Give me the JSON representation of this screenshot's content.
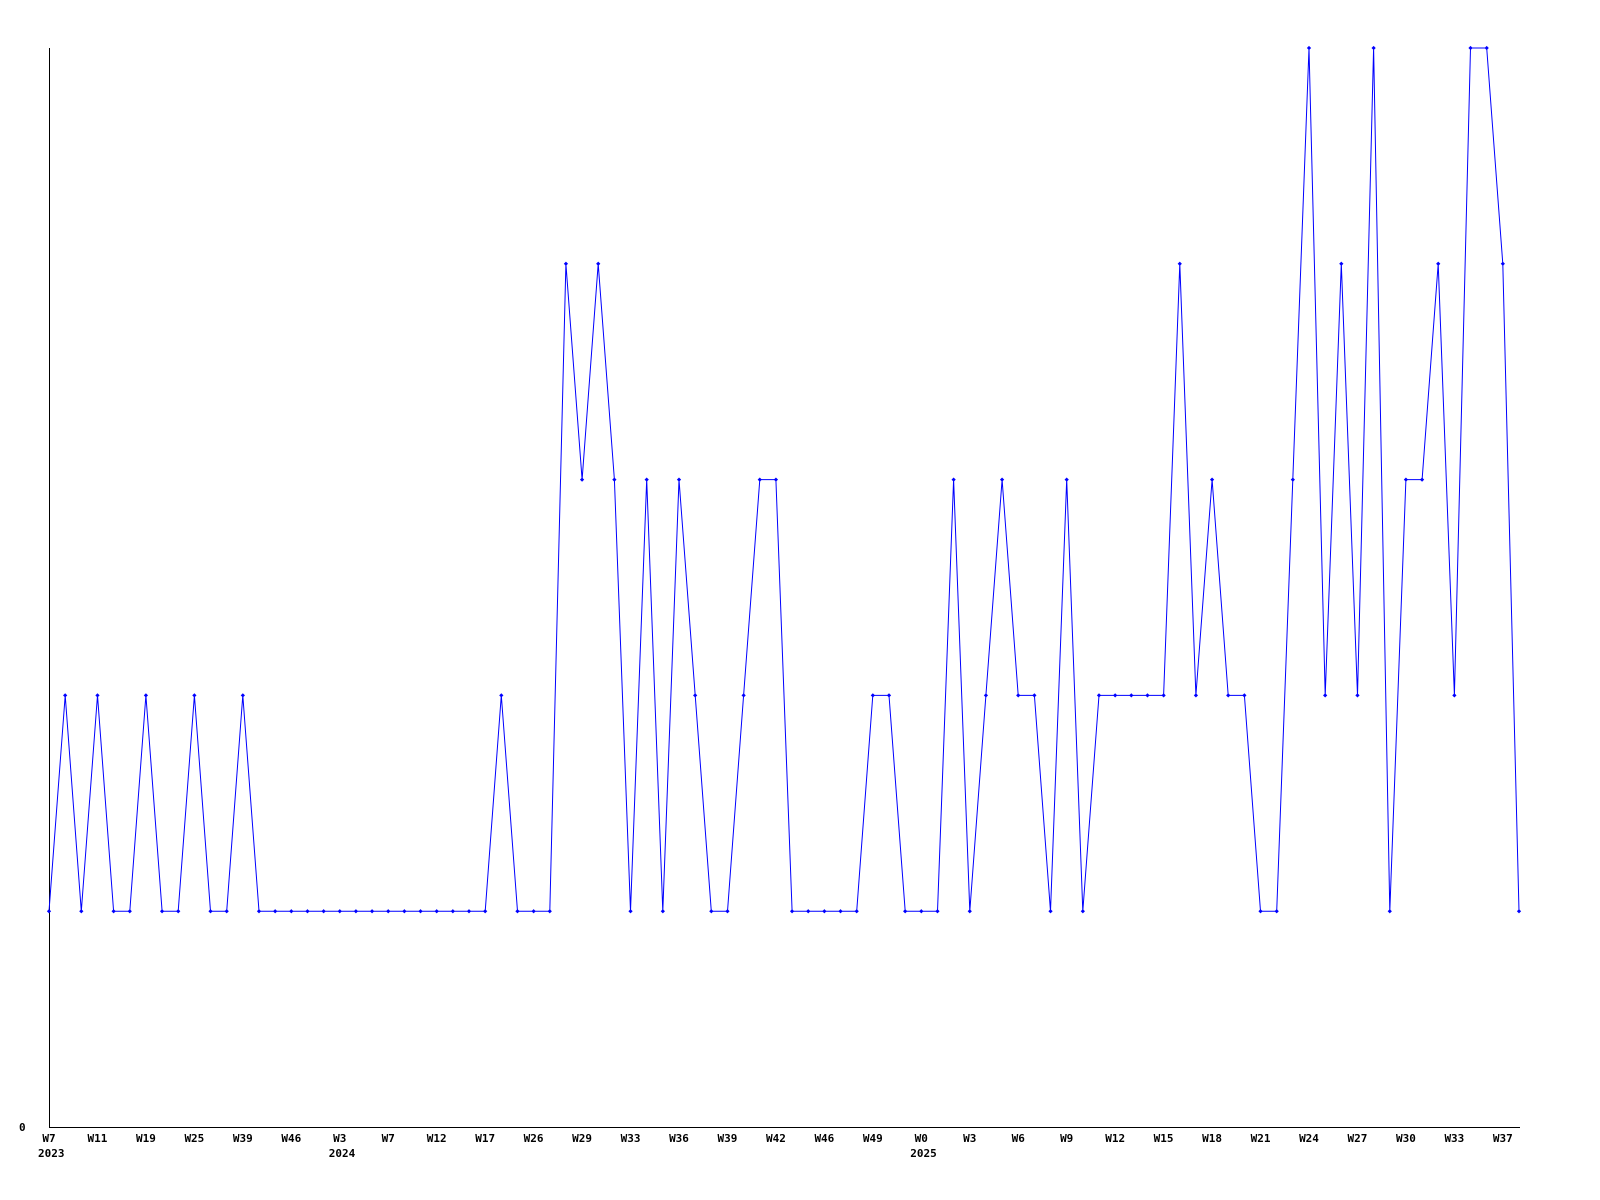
{
  "chart_data": {
    "type": "line",
    "title": "",
    "xlabel": "",
    "ylabel": "",
    "ylim": [
      0,
      5
    ],
    "grid": false,
    "y_tick_labels": [
      "0"
    ],
    "line_color": "#0000ff",
    "axis_color": "#000000",
    "values": [
      1,
      2,
      1,
      2,
      1,
      1,
      2,
      1,
      1,
      2,
      1,
      1,
      2,
      1,
      1,
      1,
      1,
      1,
      1,
      1,
      1,
      1,
      1,
      1,
      1,
      1,
      1,
      1,
      2,
      1,
      1,
      1,
      4,
      3,
      4,
      3,
      1,
      3,
      1,
      3,
      2,
      1,
      1,
      2,
      3,
      3,
      1,
      1,
      1,
      1,
      1,
      2,
      2,
      1,
      1,
      1,
      3,
      1,
      2,
      3,
      2,
      2,
      1,
      3,
      1,
      2,
      2,
      2,
      2,
      2,
      4,
      2,
      3,
      2,
      2,
      1,
      1,
      3,
      5,
      2,
      4,
      2,
      5,
      1,
      3,
      3,
      4,
      2,
      5,
      5,
      4,
      1
    ],
    "x_ticks": [
      {
        "index": 0,
        "label": "W7",
        "year": "2023"
      },
      {
        "index": 3,
        "label": "W11"
      },
      {
        "index": 6,
        "label": "W19"
      },
      {
        "index": 9,
        "label": "W25"
      },
      {
        "index": 12,
        "label": "W39"
      },
      {
        "index": 15,
        "label": "W46"
      },
      {
        "index": 18,
        "label": "W3",
        "year": "2024"
      },
      {
        "index": 21,
        "label": "W7"
      },
      {
        "index": 24,
        "label": "W12"
      },
      {
        "index": 27,
        "label": "W17"
      },
      {
        "index": 30,
        "label": "W26"
      },
      {
        "index": 33,
        "label": "W29"
      },
      {
        "index": 36,
        "label": "W33"
      },
      {
        "index": 39,
        "label": "W36"
      },
      {
        "index": 42,
        "label": "W39"
      },
      {
        "index": 45,
        "label": "W42"
      },
      {
        "index": 48,
        "label": "W46"
      },
      {
        "index": 51,
        "label": "W49"
      },
      {
        "index": 54,
        "label": "W0",
        "year": "2025"
      },
      {
        "index": 57,
        "label": "W3"
      },
      {
        "index": 60,
        "label": "W6"
      },
      {
        "index": 63,
        "label": "W9"
      },
      {
        "index": 66,
        "label": "W12"
      },
      {
        "index": 69,
        "label": "W15"
      },
      {
        "index": 72,
        "label": "W18"
      },
      {
        "index": 75,
        "label": "W21"
      },
      {
        "index": 78,
        "label": "W24"
      },
      {
        "index": 81,
        "label": "W27"
      },
      {
        "index": 84,
        "label": "W30"
      },
      {
        "index": 87,
        "label": "W33"
      },
      {
        "index": 90,
        "label": "W37"
      }
    ]
  }
}
